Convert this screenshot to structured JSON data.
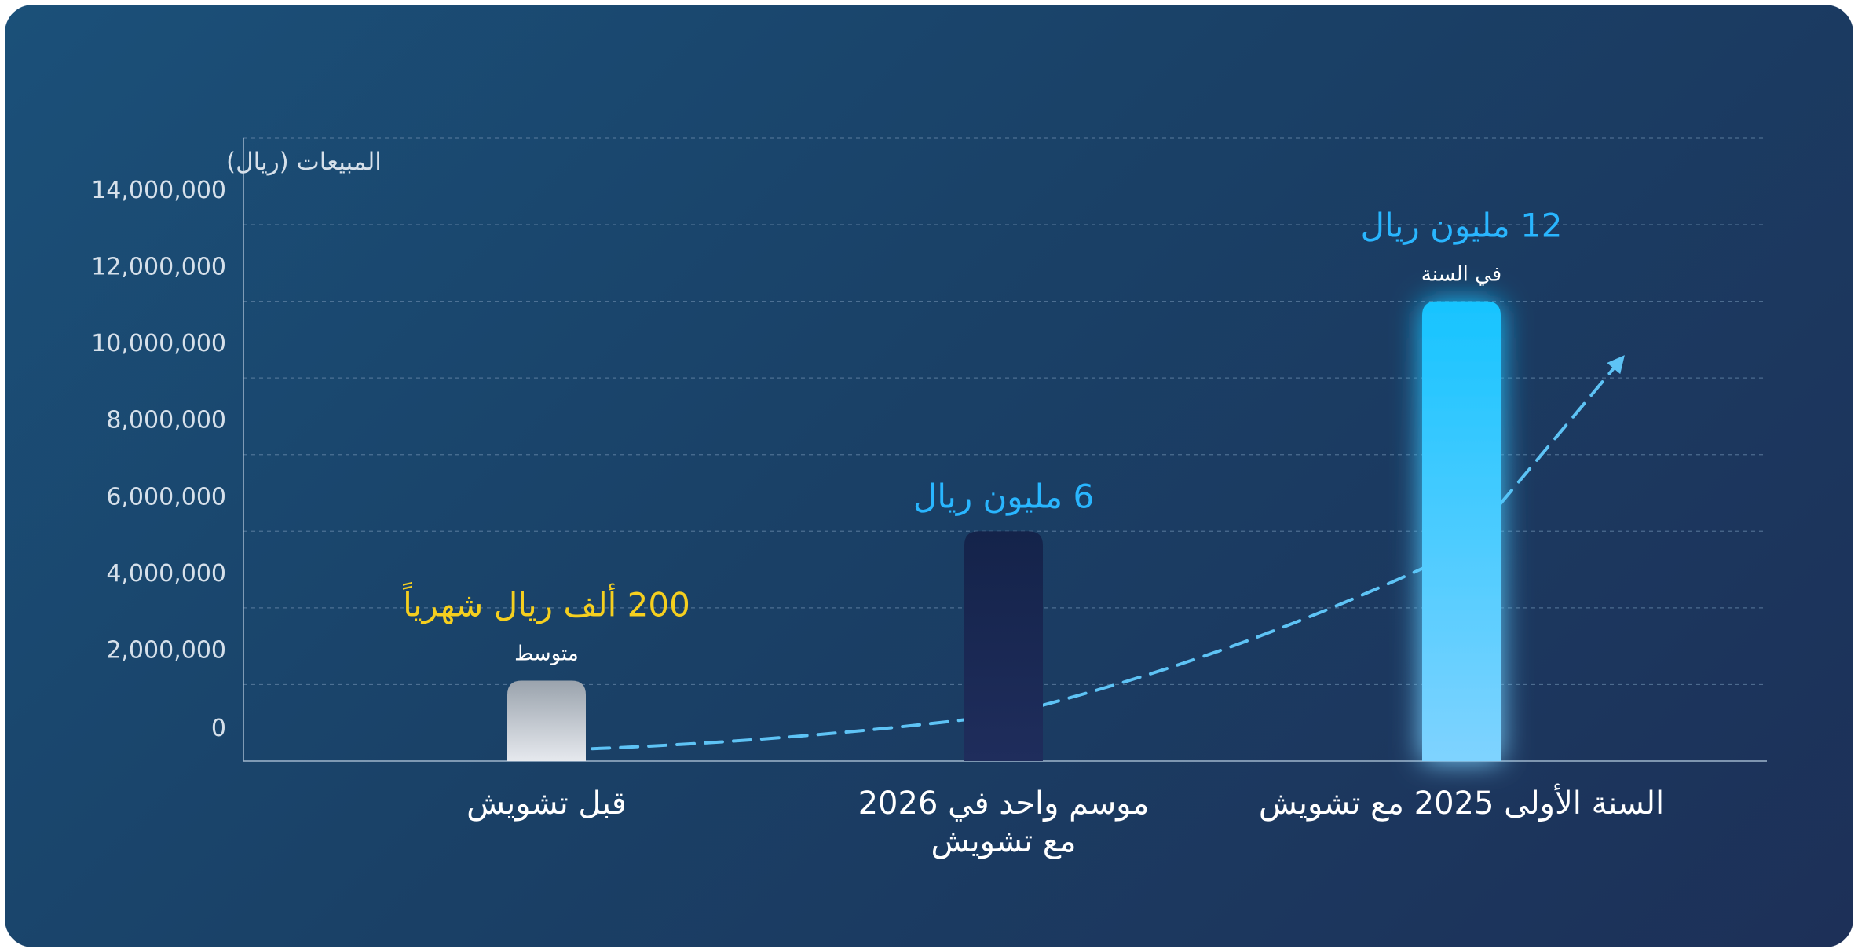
{
  "chart_data": {
    "type": "bar",
    "ylabel": "المبيعات (ريال)",
    "ylim": [
      0,
      14000000
    ],
    "yticks": [
      0,
      2000000,
      4000000,
      6000000,
      8000000,
      10000000,
      12000000,
      14000000
    ],
    "ytick_labels": [
      "0",
      "2,000,000",
      "4,000,000",
      "6,000,000",
      "8,000,000",
      "10,000,000",
      "12,000,000",
      "14,000,000"
    ],
    "grid": true,
    "categories": [
      "قبل تشويش",
      "موسم واحد في 2026\nمع تشويش",
      "السنة الأولى 2025 مع تشويش"
    ],
    "values": [
      2100000,
      6000000,
      12000000
    ],
    "bar_colors": [
      [
        "#9aa3ad",
        "#e6e9ee"
      ],
      [
        "#14234a",
        "#1f2d5c"
      ],
      [
        "#17c4ff",
        "#7fd3ff"
      ]
    ],
    "annotations": [
      {
        "category_index": 0,
        "main": "200 ألف ريال شهرياً",
        "sub": "متوسط",
        "color": "#f5cf1f"
      },
      {
        "category_index": 1,
        "main": "6 مليون ريال",
        "sub": "",
        "color": "#29b6ff"
      },
      {
        "category_index": 2,
        "main": "12 مليون ريال",
        "sub": "في السنة",
        "color": "#29b6ff"
      }
    ],
    "trend_line": {
      "style": "dashed",
      "arrow": true,
      "color": "#5ec3f5",
      "points": [
        {
          "x": 0.1,
          "y": 200000
        },
        {
          "x": 1.0,
          "y": 1200000
        },
        {
          "x": 1.5,
          "y": 3000000
        },
        {
          "x": 2.0,
          "y": 5500000
        },
        {
          "x": 2.35,
          "y": 10500000
        }
      ]
    },
    "colors": {
      "axis": "#9fb6cc",
      "grid": "#6f8fb0",
      "tick_text": "#d6e0ea",
      "category_text": "#ffffff"
    }
  }
}
